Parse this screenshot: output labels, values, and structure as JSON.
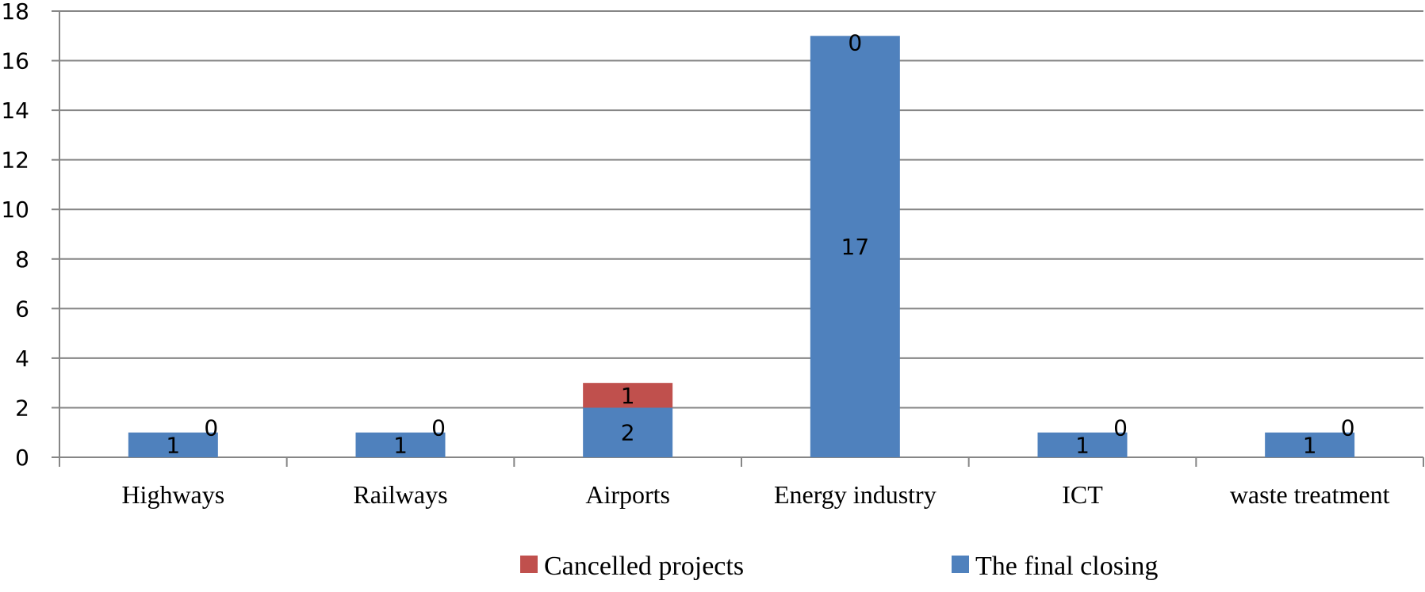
{
  "chart_data": {
    "type": "bar",
    "stacked": true,
    "categories": [
      "Highways",
      "Railways",
      "Airports",
      "Energy industry",
      "ICT",
      "waste treatment"
    ],
    "series": [
      {
        "name": "The final closing",
        "values": [
          1,
          1,
          2,
          17,
          1,
          1
        ],
        "color": "#4F81BD"
      },
      {
        "name": "Cancelled projects",
        "values": [
          0,
          0,
          1,
          0,
          0,
          0
        ],
        "color": "#C0504D"
      }
    ],
    "ylim": [
      0,
      18
    ],
    "yticks": [
      0,
      2,
      4,
      6,
      8,
      10,
      12,
      14,
      16,
      18
    ],
    "grid": true,
    "legend_position": "bottom",
    "legend_order": [
      "Cancelled projects",
      "The final closing"
    ],
    "title": "",
    "xlabel": "",
    "ylabel": ""
  }
}
